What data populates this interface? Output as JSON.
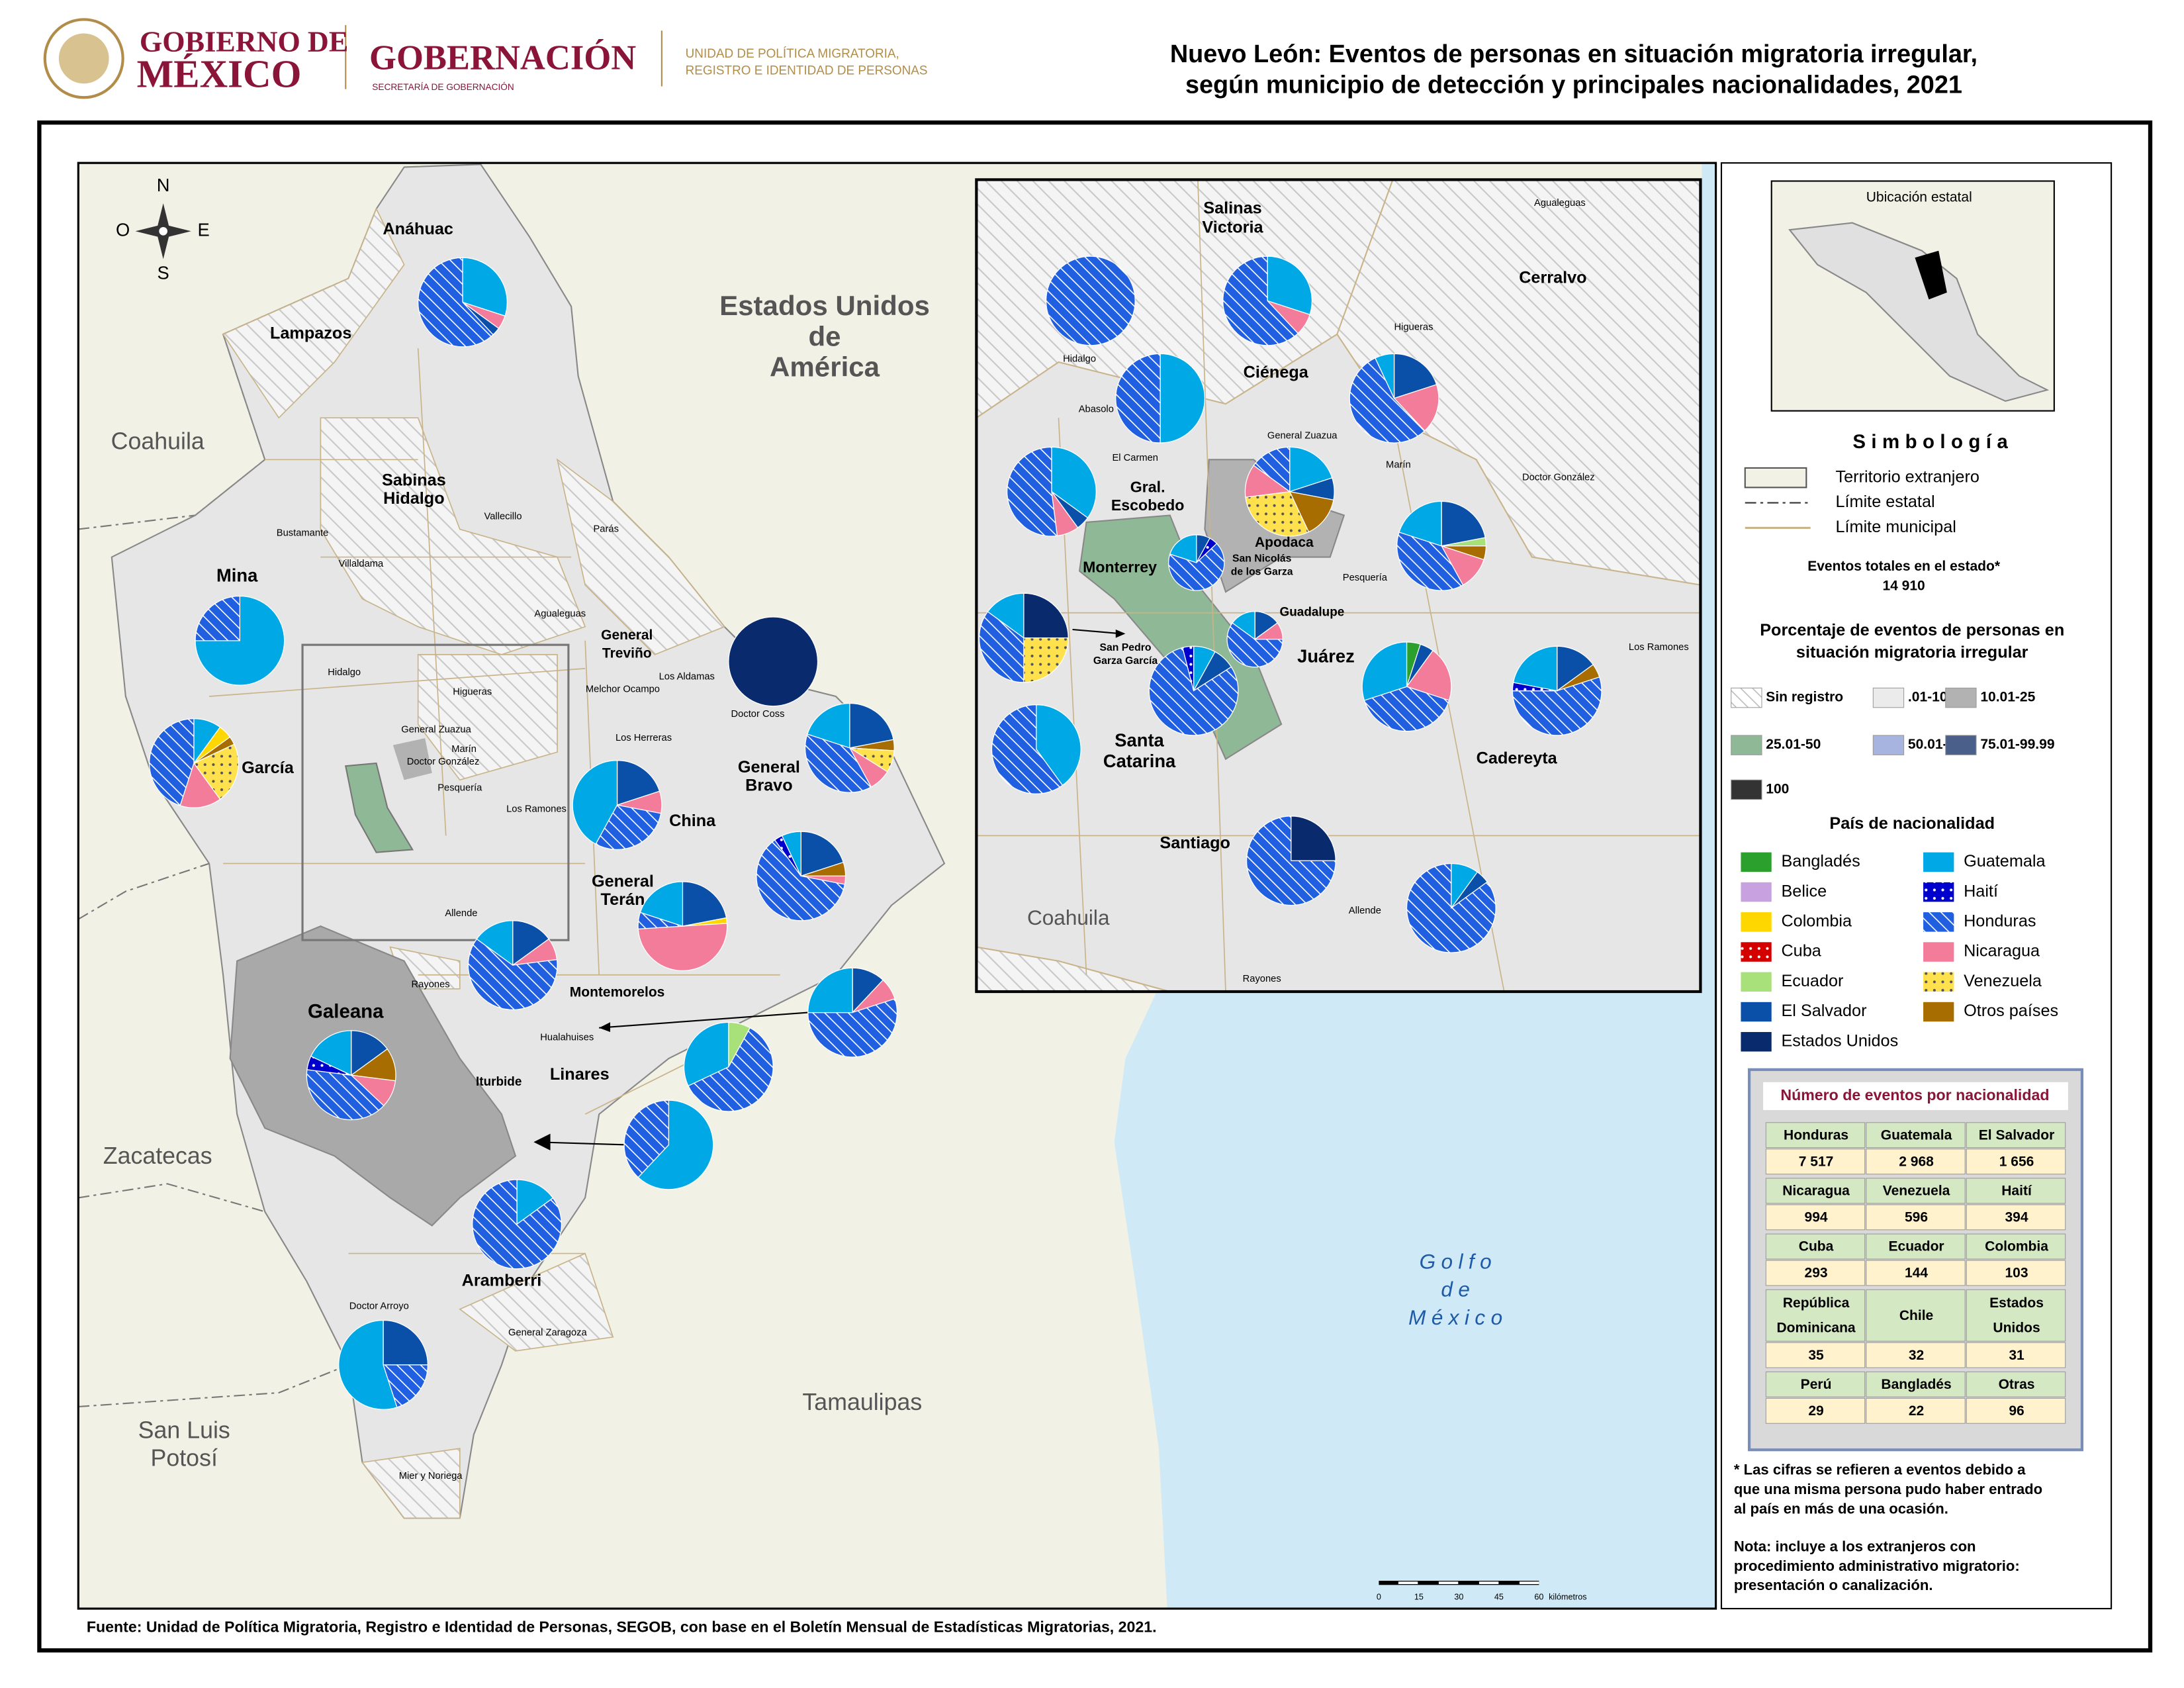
{
  "header": {
    "gov1": "GOBIERNO DE",
    "gov2": "MÉXICO",
    "gobernacion": "GOBERNACIÓN",
    "secretaria": "SECRETARÍA DE GOBERNACIÓN",
    "unidad": [
      "UNIDAD DE POLÍTICA MIGRATORIA,",
      "REGISTRO E IDENTIDAD DE PERSONAS"
    ]
  },
  "title": [
    "Nuevo León: Eventos de personas en situación migratoria irregular,",
    "según municipio de detección y principales nacionalidades, 2021"
  ],
  "map": {
    "compass": [
      "N",
      "O",
      "E",
      "S"
    ],
    "regions": [
      [
        "Coahuila"
      ],
      [
        "Estados Unidos",
        "de",
        "América"
      ],
      [
        "Zacatecas"
      ],
      [
        "San Luis",
        "Potosí"
      ],
      [
        "Tamaulipas"
      ]
    ],
    "gulf": [
      "Golfo",
      "de",
      "México"
    ],
    "municipios": [
      [
        "Anáhuac"
      ],
      [
        "Lampazos"
      ],
      [
        "Sabinas",
        "Hidalgo"
      ],
      [
        "Mina"
      ],
      [
        "García"
      ],
      [
        "China"
      ],
      [
        "General",
        "Bravo"
      ],
      [
        "General",
        "Terán"
      ],
      [
        "Montemorelos"
      ],
      [
        "Linares"
      ],
      [
        "Galeana"
      ],
      [
        "Iturbide"
      ],
      [
        "Aramberri"
      ],
      [
        "General",
        "Treviño"
      ]
    ],
    "small": [
      "Bustamante",
      "Villaldama",
      "Vallecillo",
      "Parás",
      "Agualeguas",
      "Los Aldamas",
      "Melchor Ocampo",
      "Doctor Coss",
      "Los Herreras",
      "Hidalgo",
      "Higueras",
      "General Zuazua",
      "Marín",
      "Doctor González",
      "Pesquería",
      "Los Ramones",
      "Allende",
      "Rayones",
      "Hualahuises",
      "Doctor Arroyo",
      "General Zaragoza",
      "Mier y Noriega"
    ]
  },
  "inset": {
    "municipios": [
      [
        "Salinas",
        "Victoria"
      ],
      [
        "Cerralvo"
      ],
      [
        "Ciénega"
      ],
      [
        "Gral.",
        "Escobedo"
      ],
      [
        "Apodaca"
      ],
      [
        "Monterrey"
      ],
      [
        "San Nicolás",
        "de los Garza"
      ],
      [
        "Guadalupe"
      ],
      [
        "Juárez"
      ],
      [
        "San Pedro",
        "Garza García"
      ],
      [
        "Santa",
        "Catarina"
      ],
      [
        "Cadereyta"
      ],
      [
        "Santiago"
      ],
      [
        "Coahuila"
      ]
    ],
    "small": [
      "Agualeguas",
      "Higueras",
      "Hidalgo",
      "Abasolo",
      "El Carmen",
      "General Zuazua",
      "Marín",
      "Doctor González",
      "Pesquería",
      "Los Ramones",
      "Allende",
      "Rayones"
    ]
  },
  "scale": {
    "ticks": [
      "0",
      "15",
      "30",
      "45",
      "60"
    ],
    "unit": "kilómetros"
  },
  "pies": [
    {
      "slices": [
        {
          "name": "Guatemala",
          "value": 30
        },
        {
          "name": "Nicaragua",
          "value": 5
        },
        {
          "name": "El Salvador",
          "value": 3
        },
        {
          "name": "Honduras",
          "value": 62
        }
      ]
    },
    {
      "slices": [
        {
          "name": "Guatemala",
          "value": 75
        },
        {
          "name": "Honduras",
          "value": 25
        }
      ]
    },
    {
      "slices": [
        {
          "name": "Guatemala",
          "value": 10
        },
        {
          "name": "Colombia",
          "value": 5
        },
        {
          "name": "Otros países",
          "value": 3
        },
        {
          "name": "Venezuela",
          "value": 22
        },
        {
          "name": "Nicaragua",
          "value": 15
        },
        {
          "name": "Honduras",
          "value": 45
        }
      ]
    },
    {
      "slices": [
        {
          "name": "El Salvador",
          "value": 20
        },
        {
          "name": "Nicaragua",
          "value": 8
        },
        {
          "name": "Honduras",
          "value": 30
        },
        {
          "name": "Guatemala",
          "value": 42
        }
      ]
    },
    {
      "slices": [
        {
          "name": "Estados Unidos",
          "value": 100
        }
      ]
    },
    {
      "slices": [
        {
          "name": "El Salvador",
          "value": 22
        },
        {
          "name": "Otros países",
          "value": 4
        },
        {
          "name": "Venezuela",
          "value": 8
        },
        {
          "name": "Nicaragua",
          "value": 8
        },
        {
          "name": "Honduras",
          "value": 38
        },
        {
          "name": "Guatemala",
          "value": 20
        }
      ]
    },
    {
      "slices": [
        {
          "name": "El Salvador",
          "value": 20
        },
        {
          "name": "Otros países",
          "value": 5
        },
        {
          "name": "Nicaragua",
          "value": 3
        },
        {
          "name": "Honduras",
          "value": 62
        },
        {
          "name": "Haití",
          "value": 3
        },
        {
          "name": "Guatemala",
          "value": 7
        }
      ]
    },
    {
      "slices": [
        {
          "name": "El Salvador",
          "value": 22
        },
        {
          "name": "Colombia",
          "value": 2
        },
        {
          "name": "Nicaragua",
          "value": 50
        },
        {
          "name": "Honduras",
          "value": 6
        },
        {
          "name": "Guatemala",
          "value": 20
        }
      ]
    },
    {
      "slices": [
        {
          "name": "El Salvador",
          "value": 15
        },
        {
          "name": "Nicaragua",
          "value": 8
        },
        {
          "name": "Honduras",
          "value": 62
        },
        {
          "name": "Guatemala",
          "value": 15
        }
      ]
    },
    {
      "slices": [
        {
          "name": "El Salvador",
          "value": 15
        },
        {
          "name": "Otros países",
          "value": 12
        },
        {
          "name": "Nicaragua",
          "value": 10
        },
        {
          "name": "Honduras",
          "value": 40
        },
        {
          "name": "Haití",
          "value": 5
        },
        {
          "name": "Guatemala",
          "value": 18
        }
      ]
    },
    {
      "slices": [
        {
          "name": "El Salvador",
          "value": 12
        },
        {
          "name": "Nicaragua",
          "value": 8
        },
        {
          "name": "Honduras",
          "value": 55
        },
        {
          "name": "Guatemala",
          "value": 25
        }
      ]
    },
    {
      "slices": [
        {
          "name": "Ecuador",
          "value": 8
        },
        {
          "name": "Honduras",
          "value": 60
        },
        {
          "name": "Guatemala",
          "value": 32
        }
      ]
    },
    {
      "slices": [
        {
          "name": "Guatemala",
          "value": 62
        },
        {
          "name": "Honduras",
          "value": 38
        }
      ]
    },
    {
      "slices": [
        {
          "name": "Guatemala",
          "value": 15
        },
        {
          "name": "Honduras",
          "value": 85
        }
      ]
    },
    {
      "slices": [
        {
          "name": "El Salvador",
          "value": 25
        },
        {
          "name": "Honduras",
          "value": 20
        },
        {
          "name": "Guatemala",
          "value": 55
        }
      ]
    },
    {
      "slices": [
        {
          "name": "Honduras",
          "value": 100
        }
      ]
    },
    {
      "slices": [
        {
          "name": "Guatemala",
          "value": 30
        },
        {
          "name": "Nicaragua",
          "value": 8
        },
        {
          "name": "Honduras",
          "value": 62
        }
      ]
    },
    {
      "slices": [
        {
          "name": "Guatemala",
          "value": 50
        },
        {
          "name": "Honduras",
          "value": 50
        }
      ]
    },
    {
      "slices": [
        {
          "name": "El Salvador",
          "value": 20
        },
        {
          "name": "Nicaragua",
          "value": 18
        },
        {
          "name": "Honduras",
          "value": 55
        },
        {
          "name": "Guatemala",
          "value": 7
        }
      ]
    },
    {
      "slices": [
        {
          "name": "Guatemala",
          "value": 35
        },
        {
          "name": "El Salvador",
          "value": 5
        },
        {
          "name": "Nicaragua",
          "value": 8
        },
        {
          "name": "Honduras",
          "value": 52
        }
      ]
    },
    {
      "slices": [
        {
          "name": "Guatemala",
          "value": 20
        },
        {
          "name": "El Salvador",
          "value": 8
        },
        {
          "name": "Otros países",
          "value": 15
        },
        {
          "name": "Venezuela",
          "value": 30
        },
        {
          "name": "Nicaragua",
          "value": 12
        },
        {
          "name": "Honduras",
          "value": 15
        }
      ]
    },
    {
      "slices": [
        {
          "name": "El Salvador",
          "value": 22
        },
        {
          "name": "Ecuador",
          "value": 3
        },
        {
          "name": "Otros países",
          "value": 5
        },
        {
          "name": "Nicaragua",
          "value": 12
        },
        {
          "name": "Honduras",
          "value": 38
        },
        {
          "name": "Guatemala",
          "value": 20
        }
      ]
    },
    {
      "slices": [
        {
          "name": "El Salvador",
          "value": 8
        },
        {
          "name": "Haití",
          "value": 5
        },
        {
          "name": "Honduras",
          "value": 67
        },
        {
          "name": "Guatemala",
          "value": 20
        }
      ]
    },
    {
      "slices": [
        {
          "name": "Estados Unidos",
          "value": 25
        },
        {
          "name": "Venezuela",
          "value": 25
        },
        {
          "name": "Honduras",
          "value": 35
        },
        {
          "name": "Guatemala",
          "value": 15
        }
      ]
    },
    {
      "slices": [
        {
          "name": "El Salvador",
          "value": 15
        },
        {
          "name": "Nicaragua",
          "value": 10
        },
        {
          "name": "Honduras",
          "value": 60
        },
        {
          "name": "Guatemala",
          "value": 15
        }
      ]
    },
    {
      "slices": [
        {
          "name": "Guatemala",
          "value": 8
        },
        {
          "name": "El Salvador",
          "value": 8
        },
        {
          "name": "Honduras",
          "value": 80
        },
        {
          "name": "Haití",
          "value": 4
        }
      ]
    },
    {
      "slices": [
        {
          "name": "Bangladés",
          "value": 5
        },
        {
          "name": "El Salvador",
          "value": 5
        },
        {
          "name": "Nicaragua",
          "value": 20
        },
        {
          "name": "Honduras",
          "value": 40
        },
        {
          "name": "Guatemala",
          "value": 30
        }
      ]
    },
    {
      "slices": [
        {
          "name": "El Salvador",
          "value": 15
        },
        {
          "name": "Otros países",
          "value": 5
        },
        {
          "name": "Honduras",
          "value": 55
        },
        {
          "name": "Haití",
          "value": 3
        },
        {
          "name": "Guatemala",
          "value": 22
        }
      ]
    },
    {
      "slices": [
        {
          "name": "Guatemala",
          "value": 40
        },
        {
          "name": "Honduras",
          "value": 60
        }
      ]
    },
    {
      "slices": [
        {
          "name": "Estados Unidos",
          "value": 25
        },
        {
          "name": "Honduras",
          "value": 75
        }
      ]
    },
    {
      "slices": [
        {
          "name": "Guatemala",
          "value": 10
        },
        {
          "name": "El Salvador",
          "value": 5
        },
        {
          "name": "Honduras",
          "value": 85
        }
      ]
    }
  ],
  "legend": {
    "location": "Ubicación estatal",
    "simbologia": "Simbología",
    "symbols": [
      "Territorio extranjero",
      "Límite estatal",
      "Límite municipal"
    ],
    "total_label": "Eventos totales en el estado*",
    "total": "14 910",
    "percent_title": [
      "Porcentaje de eventos de personas en",
      "situación migratoria irregular"
    ],
    "classes": [
      {
        "label": "Sin registro",
        "color": "#ffffff",
        "pattern": "hatch"
      },
      {
        "label": ".01-10",
        "color": "#ebebeb"
      },
      {
        "label": "10.01-25",
        "color": "#b2b2b2"
      },
      {
        "label": "25.01-50",
        "color": "#8fb996"
      },
      {
        "label": "50.01-75",
        "color": "#a7b4e0"
      },
      {
        "label": "75.01-99.99",
        "color": "#4a5f8a"
      },
      {
        "label": "100",
        "color": "#333333"
      }
    ],
    "nat_title": "País de nacionalidad",
    "nationalities": [
      {
        "name": "Bangladés",
        "color": "#2ca02c"
      },
      {
        "name": "Belice",
        "color": "#c8a2e0"
      },
      {
        "name": "Colombia",
        "color": "#ffd700"
      },
      {
        "name": "Cuba",
        "color": "#d40000",
        "pattern": "dots"
      },
      {
        "name": "Ecuador",
        "color": "#a8e07a"
      },
      {
        "name": "El Salvador",
        "color": "#0a4fa8"
      },
      {
        "name": "Estados Unidos",
        "color": "#0a2a6e"
      },
      {
        "name": "Guatemala",
        "color": "#00a9e6"
      },
      {
        "name": "Haití",
        "color": "#0000cc",
        "pattern": "dots"
      },
      {
        "name": "Honduras",
        "color": "#1f5fe0",
        "pattern": "hatch"
      },
      {
        "name": "Nicaragua",
        "color": "#f47c9b"
      },
      {
        "name": "Venezuela",
        "color": "#ffe14d",
        "pattern": "dots"
      },
      {
        "name": "Otros países",
        "color": "#a86d00"
      }
    ]
  },
  "table": {
    "title": "Número de eventos por nacionalidad",
    "groups": [
      {
        "names": [
          [
            "Honduras"
          ],
          [
            "Guatemala"
          ],
          [
            "El Salvador"
          ]
        ],
        "values": [
          "7 517",
          "2 968",
          "1 656"
        ]
      },
      {
        "names": [
          [
            "Nicaragua"
          ],
          [
            "Venezuela"
          ],
          [
            "Haití"
          ]
        ],
        "values": [
          "994",
          "596",
          "394"
        ]
      },
      {
        "names": [
          [
            "Cuba"
          ],
          [
            "Ecuador"
          ],
          [
            "Colombia"
          ]
        ],
        "values": [
          "293",
          "144",
          "103"
        ]
      },
      {
        "names": [
          [
            "República",
            "Dominicana"
          ],
          [
            "Chile"
          ],
          [
            "Estados",
            "Unidos"
          ]
        ],
        "values": [
          "35",
          "32",
          "31"
        ]
      },
      {
        "names": [
          [
            "Perú"
          ],
          [
            "Bangladés"
          ],
          [
            "Otras"
          ]
        ],
        "values": [
          "29",
          "22",
          "96"
        ]
      }
    ]
  },
  "notes": [
    [
      "* Las cifras se refieren a eventos debido a",
      "que una misma persona pudo haber entrado",
      "al país en más de una ocasión."
    ],
    [
      "Nota: incluye a los extranjeros con",
      "procedimiento administrativo migratorio:",
      "presentación o canalización."
    ]
  ],
  "source": "Fuente: Unidad de Política Migratoria, Registro e Identidad de Personas, SEGOB, con base en el Boletín Mensual de Estadísticas Migratorias, 2021."
}
